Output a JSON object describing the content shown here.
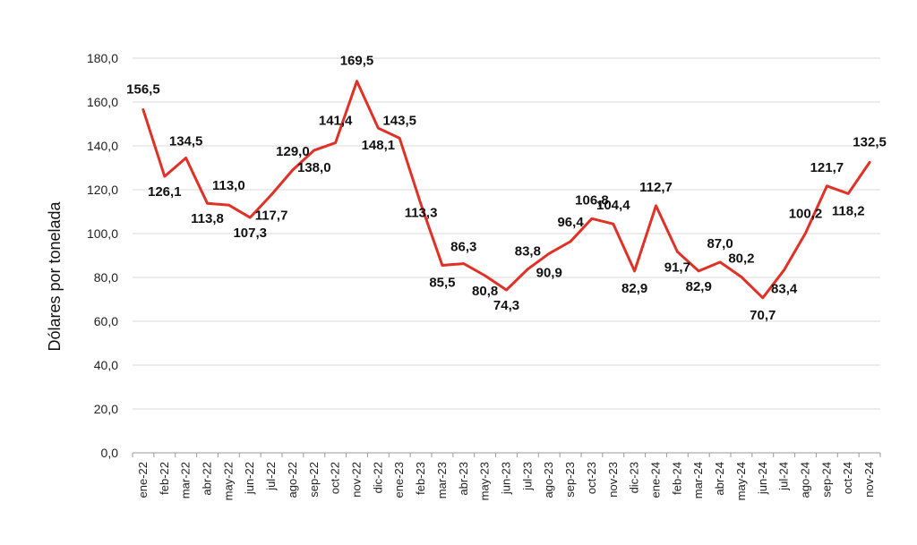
{
  "chart_data": {
    "type": "line",
    "ylabel": "Dólares por tonelada",
    "ylim": [
      0,
      180
    ],
    "yticks": [
      "0,0",
      "20,0",
      "40,0",
      "60,0",
      "80,0",
      "100,0",
      "120,0",
      "140,0",
      "160,0",
      "180,0"
    ],
    "grid": true,
    "categories": [
      "ene-22",
      "feb-22",
      "mar-22",
      "abr-22",
      "may-22",
      "jun-22",
      "jul-22",
      "ago-22",
      "sep-22",
      "oct-22",
      "nov-22",
      "dic-22",
      "ene-23",
      "feb-23",
      "mar-23",
      "abr-23",
      "may-23",
      "jun-23",
      "jul-23",
      "ago-23",
      "sep-23",
      "oct-23",
      "nov-23",
      "dic-23",
      "ene-24",
      "feb-24",
      "mar-24",
      "abr-24",
      "may-24",
      "jun-24",
      "jul-24",
      "ago-24",
      "sep-24",
      "oct-24",
      "nov-24"
    ],
    "series": [
      {
        "color": "#e03127",
        "values": [
          156.5,
          126.1,
          134.5,
          113.8,
          113.0,
          107.3,
          117.7,
          129.0,
          138.0,
          141.4,
          169.5,
          148.1,
          143.5,
          113.3,
          85.5,
          86.3,
          80.8,
          74.3,
          83.8,
          90.9,
          96.4,
          106.8,
          104.4,
          82.9,
          112.7,
          91.7,
          82.9,
          87.0,
          80.2,
          70.7,
          83.4,
          100.2,
          121.7,
          118.2,
          132.5
        ],
        "labels": [
          "156,5",
          "126,1",
          "134,5",
          "113,8",
          "113,0",
          "107,3",
          "117,7",
          "129,0",
          "138,0",
          "141,4",
          "169,5",
          "148,1",
          "143,5",
          "113,3",
          "85,5",
          "86,3",
          "80,8",
          "74,3",
          "83,8",
          "90,9",
          "96,4",
          "106,8",
          "104,4",
          "82,9",
          "112,7",
          "91,7",
          "82,9",
          "87,0",
          "80,2",
          "70,7",
          "83,4",
          "100,2",
          "121,7",
          "118,2",
          "132,5"
        ]
      }
    ]
  }
}
